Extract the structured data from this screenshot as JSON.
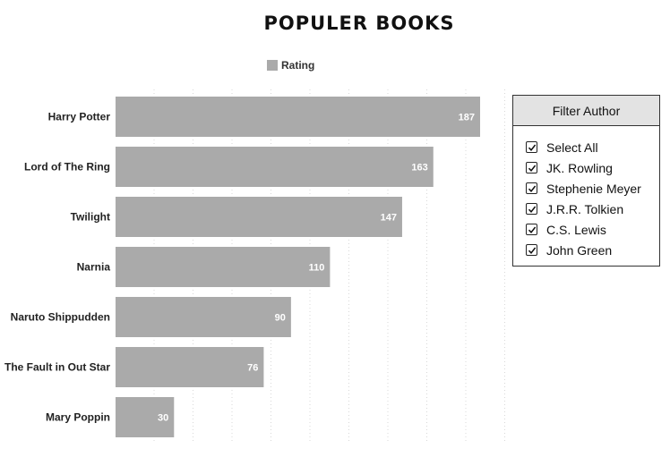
{
  "chart_data": {
    "type": "bar",
    "orientation": "horizontal",
    "title": "POPULER BOOKS",
    "categories": [
      "Harry Potter",
      "Lord of The Ring",
      "Twilight",
      "Narnia",
      "Naruto Shippudden",
      "The Fault in Out Star",
      "Mary Poppin"
    ],
    "series": [
      {
        "name": "Rating",
        "values": [
          187,
          163,
          147,
          110,
          90,
          76,
          30
        ]
      }
    ],
    "xlim": [
      0,
      190
    ],
    "grid": "vertical dotted",
    "legend_position": "top-center",
    "data_labels": true
  },
  "colors": {
    "bar": "#aaaaaa",
    "grid": "#d8d8d8"
  },
  "filter": {
    "title": "Filter Author",
    "items": [
      {
        "label": "Select All",
        "checked": true
      },
      {
        "label": "JK. Rowling",
        "checked": true
      },
      {
        "label": "Stephenie Meyer",
        "checked": true
      },
      {
        "label": "J.R.R. Tolkien",
        "checked": true
      },
      {
        "label": "C.S. Lewis",
        "checked": true
      },
      {
        "label": "John Green",
        "checked": true
      }
    ]
  }
}
